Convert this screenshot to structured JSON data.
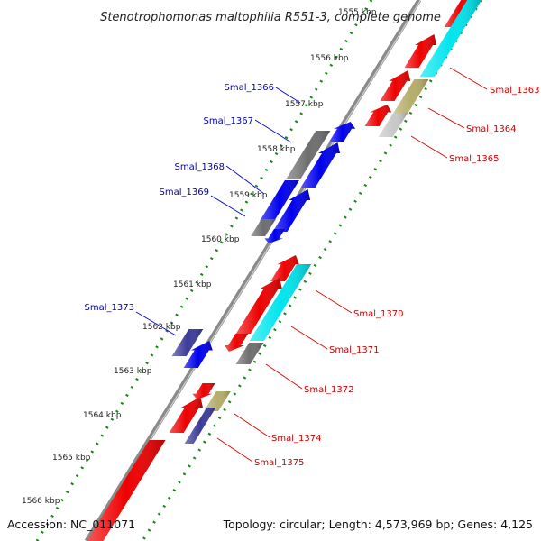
{
  "title": "Stenotrophomonas maltophilia R551-3, complete genome",
  "footer": {
    "accession": "Accession: NC_011071",
    "topology": "Topology: circular; Length: 4,573,969 bp; Genes: 4,125"
  },
  "ticks": [
    "1555 kbp",
    "1556 kbp",
    "1557 kbp",
    "1558 kbp",
    "1559 kbp",
    "1560 kbp",
    "1561 kbp",
    "1562 kbp",
    "1563 kbp",
    "1564 kbp",
    "1565 kbp",
    "1566 kbp"
  ],
  "genes": [
    {
      "label": "Smal_1363",
      "color": "#cc0000"
    },
    {
      "label": "Smal_1364",
      "color": "#cc0000"
    },
    {
      "label": "Smal_1365",
      "color": "#cc0000"
    },
    {
      "label": "Smal_1366",
      "color": "#0000aa"
    },
    {
      "label": "Smal_1367",
      "color": "#0000aa"
    },
    {
      "label": "Smal_1368",
      "color": "#0000aa"
    },
    {
      "label": "Smal_1369",
      "color": "#0000aa"
    },
    {
      "label": "Smal_1370",
      "color": "#cc0000"
    },
    {
      "label": "Smal_1371",
      "color": "#cc0000"
    },
    {
      "label": "Smal_1372",
      "color": "#cc0000"
    },
    {
      "label": "Smal_1373",
      "color": "#0000aa"
    },
    {
      "label": "Smal_1374",
      "color": "#cc0000"
    },
    {
      "label": "Smal_1375",
      "color": "#cc0000"
    }
  ],
  "palette": {
    "red": "#ee0000",
    "blue": "#0000ee",
    "cyan": "#00e5ee",
    "gray": "#6e6e6e",
    "light_gray": "#c8c8c8",
    "khaki": "#b5ad6a",
    "navy": "#3b3b99",
    "backbone": "#8a8a8a",
    "dot_green": "#118811"
  }
}
